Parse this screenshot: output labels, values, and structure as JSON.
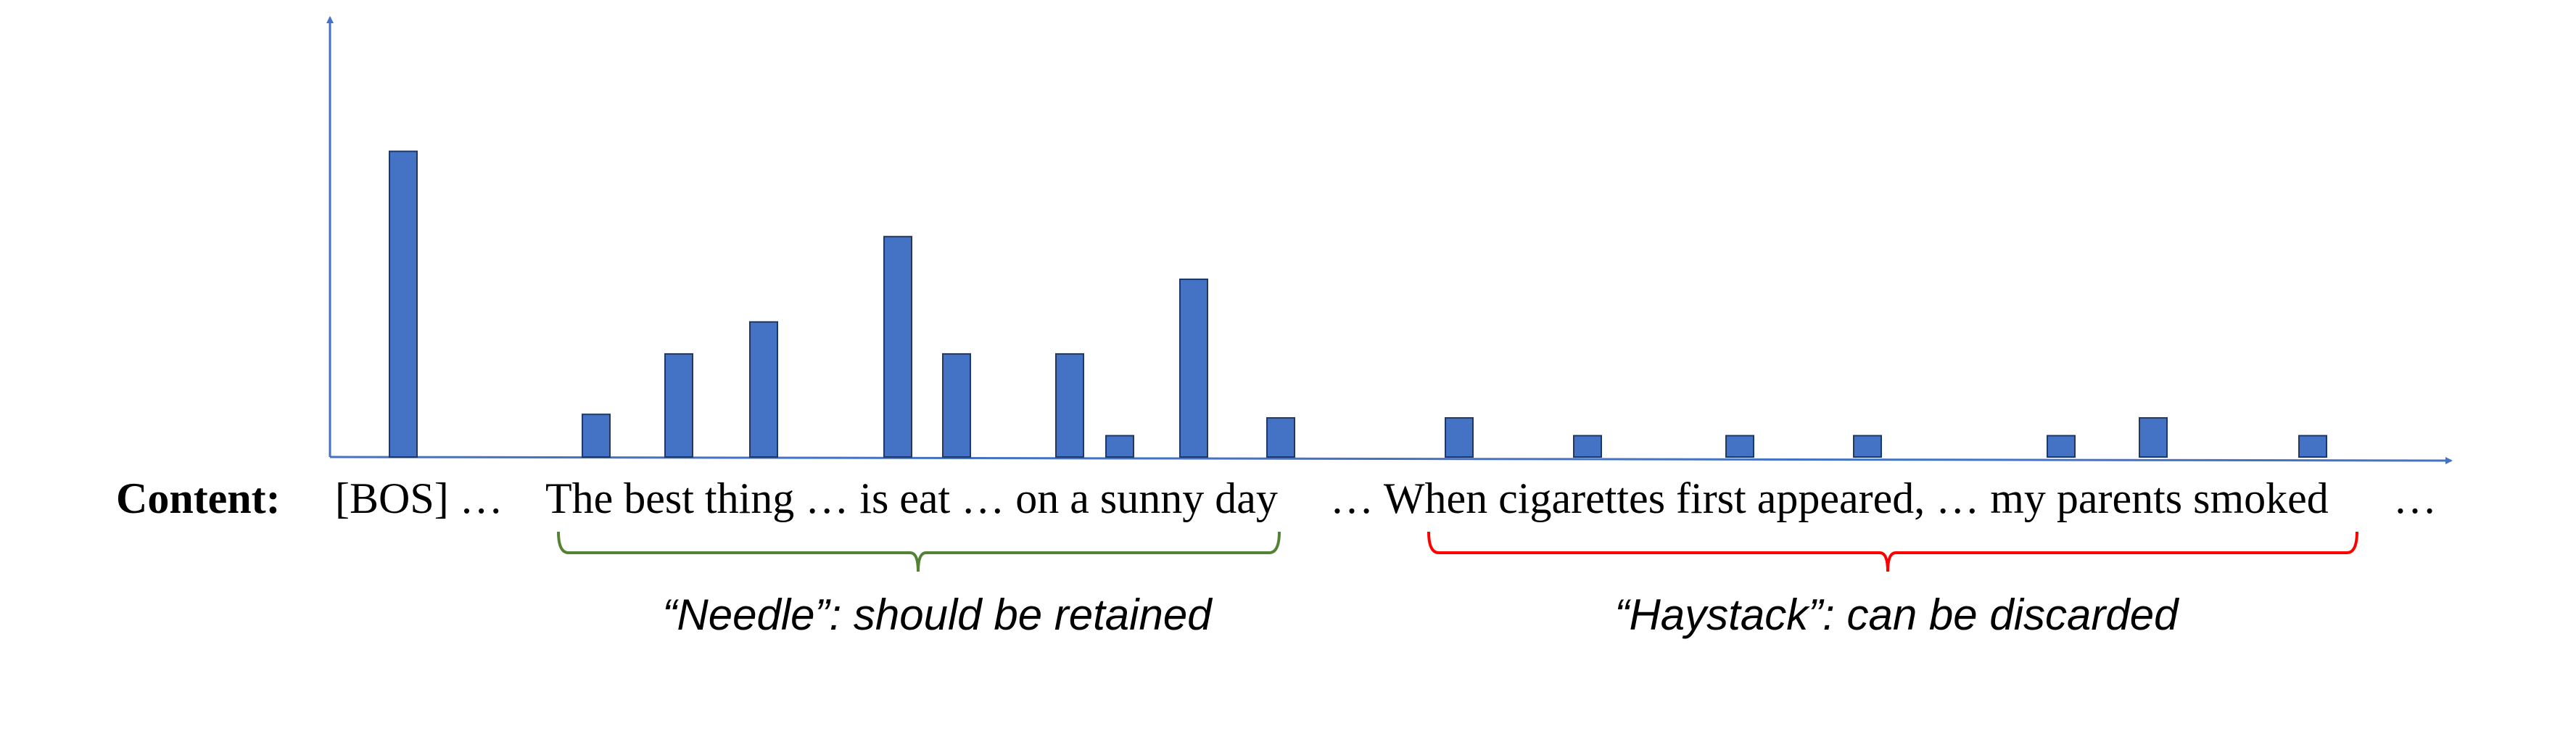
{
  "content_label": "Content:",
  "tokens": [
    "[BOS] …",
    "The best thing … is eat … on a sunny day",
    "… When cigarettes first appeared, … my parents smoked",
    "…"
  ],
  "needle": {
    "label": "“Needle”: should be retained",
    "color": "#548235"
  },
  "haystack": {
    "label": "“Haystack”: can be discarded",
    "color": "#ff0000"
  },
  "colors": {
    "axis": "#4472c4",
    "bar_fill": "#4472c4",
    "bar_stroke": "#1f3864"
  },
  "chart_data": {
    "type": "bar",
    "title": "",
    "xlabel": "",
    "ylabel": "",
    "ylim": [
      0,
      1
    ],
    "grid": false,
    "values": [
      0.86,
      0.12,
      0.29,
      0.38,
      0.62,
      0.29,
      0.29,
      0.06,
      0.5,
      0.11,
      0.11,
      0.06,
      0.06,
      0.06,
      0.06,
      0.11,
      0.06
    ]
  }
}
